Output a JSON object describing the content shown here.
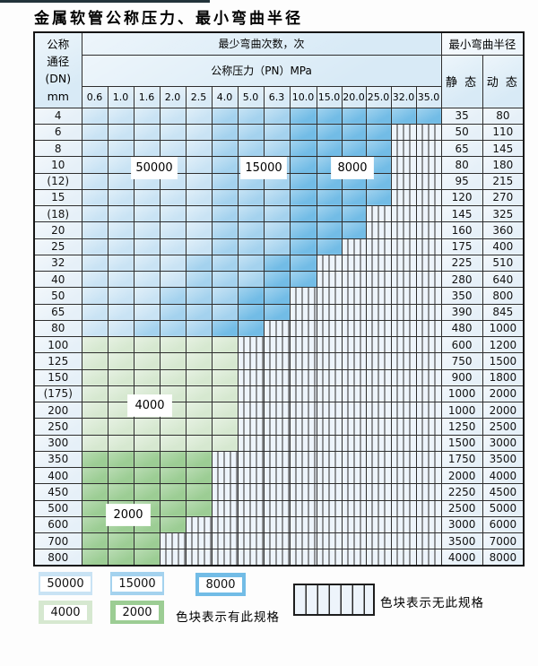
{
  "title": "金属软管公称压力、最小弯曲半径",
  "table": {
    "corner_header": "公称\n通径\n(DN)\nmm",
    "bend_cycles_header": "最少弯曲次数，次",
    "pressure_header": "公称压力（PN）MPa",
    "pressure_columns": [
      "0.6",
      "1.0",
      "1.6",
      "2.0",
      "2.5",
      "4.0",
      "5.0",
      "6.3",
      "10.0",
      "15.0",
      "20.0",
      "25.0",
      "32.0",
      "35.0"
    ],
    "radius_header": "最小弯曲半径",
    "static_header": "静 态",
    "dynamic_header": "动 态",
    "rows": [
      {
        "dn": "4",
        "segments": [
          [
            "b1",
            5
          ],
          [
            "b2",
            3
          ],
          [
            "b3",
            6
          ]
        ],
        "static": "35",
        "dynamic": "80"
      },
      {
        "dn": "6",
        "segments": [
          [
            "b1",
            5
          ],
          [
            "b2",
            3
          ],
          [
            "b3",
            4
          ],
          [
            "hx",
            2
          ]
        ],
        "static": "50",
        "dynamic": "110"
      },
      {
        "dn": "8",
        "segments": [
          [
            "b1",
            5
          ],
          [
            "b2",
            3
          ],
          [
            "b3",
            4
          ],
          [
            "hx",
            2
          ]
        ],
        "static": "65",
        "dynamic": "145"
      },
      {
        "dn": "10",
        "segments": [
          [
            "b1",
            5
          ],
          [
            "b2",
            3
          ],
          [
            "b3",
            4
          ],
          [
            "hx",
            2
          ]
        ],
        "static": "80",
        "dynamic": "180"
      },
      {
        "dn": "(12)",
        "segments": [
          [
            "b1",
            5
          ],
          [
            "b2",
            3
          ],
          [
            "b3",
            4
          ],
          [
            "hx",
            2
          ]
        ],
        "static": "95",
        "dynamic": "215"
      },
      {
        "dn": "15",
        "segments": [
          [
            "b1",
            5
          ],
          [
            "b2",
            3
          ],
          [
            "b3",
            4
          ],
          [
            "hx",
            2
          ]
        ],
        "static": "120",
        "dynamic": "270"
      },
      {
        "dn": "(18)",
        "segments": [
          [
            "b1",
            5
          ],
          [
            "b2",
            3
          ],
          [
            "b3",
            3
          ],
          [
            "hx",
            3
          ]
        ],
        "static": "145",
        "dynamic": "325"
      },
      {
        "dn": "20",
        "segments": [
          [
            "b1",
            5
          ],
          [
            "b2",
            3
          ],
          [
            "b3",
            3
          ],
          [
            "hx",
            3
          ]
        ],
        "static": "160",
        "dynamic": "360"
      },
      {
        "dn": "25",
        "segments": [
          [
            "b1",
            5
          ],
          [
            "b2",
            3
          ],
          [
            "b3",
            2
          ],
          [
            "hx",
            4
          ]
        ],
        "static": "175",
        "dynamic": "400"
      },
      {
        "dn": "32",
        "segments": [
          [
            "b1",
            4
          ],
          [
            "b2",
            3
          ],
          [
            "b3",
            2
          ],
          [
            "hx",
            5
          ]
        ],
        "static": "225",
        "dynamic": "510"
      },
      {
        "dn": "40",
        "segments": [
          [
            "b1",
            4
          ],
          [
            "b2",
            3
          ],
          [
            "b3",
            2
          ],
          [
            "hx",
            5
          ]
        ],
        "static": "280",
        "dynamic": "640"
      },
      {
        "dn": "50",
        "segments": [
          [
            "b1",
            3
          ],
          [
            "b2",
            3
          ],
          [
            "b3",
            2
          ],
          [
            "hx",
            6
          ]
        ],
        "static": "350",
        "dynamic": "800"
      },
      {
        "dn": "65",
        "segments": [
          [
            "b1",
            3
          ],
          [
            "b2",
            3
          ],
          [
            "b3",
            2
          ],
          [
            "hx",
            6
          ]
        ],
        "static": "390",
        "dynamic": "845"
      },
      {
        "dn": "80",
        "segments": [
          [
            "b1",
            2
          ],
          [
            "b2",
            3
          ],
          [
            "b3",
            2
          ],
          [
            "hx",
            7
          ]
        ],
        "static": "480",
        "dynamic": "1000"
      },
      {
        "dn": "100",
        "segments": [
          [
            "g1",
            6
          ],
          [
            "hx",
            8
          ]
        ],
        "static": "600",
        "dynamic": "1200"
      },
      {
        "dn": "125",
        "segments": [
          [
            "g1",
            6
          ],
          [
            "hx",
            8
          ]
        ],
        "static": "750",
        "dynamic": "1500"
      },
      {
        "dn": "150",
        "segments": [
          [
            "g1",
            6
          ],
          [
            "hx",
            8
          ]
        ],
        "static": "900",
        "dynamic": "1800"
      },
      {
        "dn": "(175)",
        "segments": [
          [
            "g1",
            6
          ],
          [
            "hx",
            8
          ]
        ],
        "static": "1000",
        "dynamic": "2000"
      },
      {
        "dn": "200",
        "segments": [
          [
            "g1",
            6
          ],
          [
            "hx",
            8
          ]
        ],
        "static": "1000",
        "dynamic": "2000"
      },
      {
        "dn": "250",
        "segments": [
          [
            "g1",
            6
          ],
          [
            "hx",
            8
          ]
        ],
        "static": "1250",
        "dynamic": "2500"
      },
      {
        "dn": "300",
        "segments": [
          [
            "g1",
            6
          ],
          [
            "hx",
            8
          ]
        ],
        "static": "1500",
        "dynamic": "3000"
      },
      {
        "dn": "350",
        "segments": [
          [
            "g2",
            5
          ],
          [
            "hx",
            9
          ]
        ],
        "static": "1750",
        "dynamic": "3500"
      },
      {
        "dn": "400",
        "segments": [
          [
            "g2",
            5
          ],
          [
            "hx",
            9
          ]
        ],
        "static": "2000",
        "dynamic": "4000"
      },
      {
        "dn": "450",
        "segments": [
          [
            "g2",
            5
          ],
          [
            "hx",
            9
          ]
        ],
        "static": "2250",
        "dynamic": "4500"
      },
      {
        "dn": "500",
        "segments": [
          [
            "g2",
            5
          ],
          [
            "hx",
            9
          ]
        ],
        "static": "2500",
        "dynamic": "5000"
      },
      {
        "dn": "600",
        "segments": [
          [
            "g2",
            4
          ],
          [
            "hx",
            10
          ]
        ],
        "static": "3000",
        "dynamic": "6000"
      },
      {
        "dn": "700",
        "segments": [
          [
            "g2",
            3
          ],
          [
            "hx",
            11
          ]
        ],
        "static": "3500",
        "dynamic": "7000"
      },
      {
        "dn": "800",
        "segments": [
          [
            "g2",
            3
          ],
          [
            "hx",
            11
          ]
        ],
        "static": "4000",
        "dynamic": "8000"
      }
    ]
  },
  "overlays": [
    {
      "text": "50000"
    },
    {
      "text": "15000"
    },
    {
      "text": "8000"
    },
    {
      "text": "4000"
    },
    {
      "text": "2000"
    }
  ],
  "legend": {
    "items": [
      {
        "label": "50000",
        "shade": "b1"
      },
      {
        "label": "15000",
        "shade": "b2"
      },
      {
        "label": "8000",
        "shade": "b3"
      },
      {
        "label": "4000",
        "shade": "g1"
      },
      {
        "label": "2000",
        "shade": "g2"
      }
    ],
    "has_spec_label": "色块表示有此规格",
    "no_spec_label": "色块表示无此规格"
  },
  "colors": {
    "cycles_50000": "#c9e3f4",
    "cycles_15000": "#a4d2ee",
    "cycles_8000": "#72bce6",
    "cycles_4000": "#d6e8d0",
    "cycles_2000": "#9ccd94",
    "no_spec_fill": "#edf4fb",
    "header_fill": "#d8eaf6",
    "label_cell_fill": "#e6f0f8",
    "grid_line": "#2e2e2e"
  }
}
